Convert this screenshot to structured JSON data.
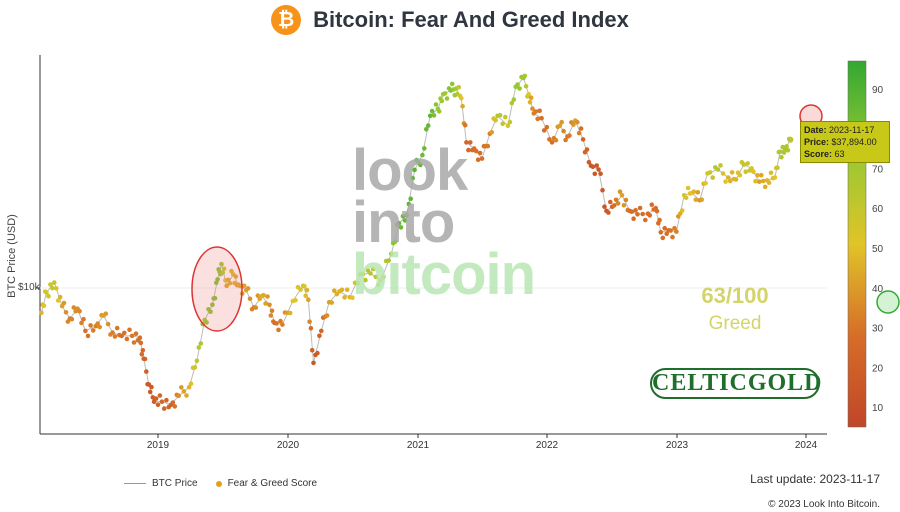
{
  "header": {
    "title": "Bitcoin: Fear And Greed Index",
    "logo_glyph": "₿"
  },
  "chart_data": {
    "type": "scatter",
    "title": "Bitcoin: Fear And Greed Index",
    "ylabel": "BTC Price (USD)",
    "y_scale": "log",
    "y_tick_label": "$10k",
    "x_ticks": [
      "2019",
      "2020",
      "2021",
      "2022",
      "2023",
      "2024"
    ],
    "colorbar_ticks": [
      10,
      20,
      30,
      40,
      50,
      60,
      70,
      80,
      90
    ],
    "series": [
      {
        "name": "BTC Price",
        "points": [
          [
            2018.1,
            8000
          ],
          [
            2018.14,
            9600
          ],
          [
            2018.2,
            10500
          ],
          [
            2018.26,
            8500
          ],
          [
            2018.32,
            7600
          ],
          [
            2018.38,
            8300
          ],
          [
            2018.44,
            6800
          ],
          [
            2018.52,
            7100
          ],
          [
            2018.58,
            7800
          ],
          [
            2018.65,
            6700
          ],
          [
            2018.72,
            6500
          ],
          [
            2018.8,
            6500
          ],
          [
            2018.86,
            6400
          ],
          [
            2018.89,
            5300
          ],
          [
            2018.93,
            4200
          ],
          [
            2018.97,
            3600
          ],
          [
            2019.03,
            3600
          ],
          [
            2019.1,
            3500
          ],
          [
            2019.16,
            3800
          ],
          [
            2019.24,
            4100
          ],
          [
            2019.3,
            5200
          ],
          [
            2019.36,
            7500
          ],
          [
            2019.42,
            8600
          ],
          [
            2019.46,
            10800
          ],
          [
            2019.49,
            12400
          ],
          [
            2019.53,
            10200
          ],
          [
            2019.58,
            11300
          ],
          [
            2019.62,
            10300
          ],
          [
            2019.68,
            9800
          ],
          [
            2019.74,
            8400
          ],
          [
            2019.8,
            9300
          ],
          [
            2019.86,
            8600
          ],
          [
            2019.9,
            7300
          ],
          [
            2019.96,
            7200
          ],
          [
            2020.04,
            8900
          ],
          [
            2020.12,
            10200
          ],
          [
            2020.16,
            9000
          ],
          [
            2020.2,
            5100
          ],
          [
            2020.26,
            6800
          ],
          [
            2020.32,
            8800
          ],
          [
            2020.4,
            9700
          ],
          [
            2020.48,
            9200
          ],
          [
            2020.56,
            11300
          ],
          [
            2020.64,
            11400
          ],
          [
            2020.72,
            10700
          ],
          [
            2020.8,
            13600
          ],
          [
            2020.86,
            17900
          ],
          [
            2020.92,
            19200
          ],
          [
            2020.98,
            28900
          ],
          [
            2021.04,
            33000
          ],
          [
            2021.1,
            47000
          ],
          [
            2021.16,
            50000
          ],
          [
            2021.2,
            57000
          ],
          [
            2021.26,
            59000
          ],
          [
            2021.3,
            60000
          ],
          [
            2021.34,
            55000
          ],
          [
            2021.38,
            37000
          ],
          [
            2021.44,
            35000
          ],
          [
            2021.5,
            32000
          ],
          [
            2021.56,
            40000
          ],
          [
            2021.62,
            47000
          ],
          [
            2021.7,
            43000
          ],
          [
            2021.76,
            61000
          ],
          [
            2021.82,
            66000
          ],
          [
            2021.86,
            57000
          ],
          [
            2021.9,
            48000
          ],
          [
            2021.96,
            46000
          ],
          [
            2022.04,
            37000
          ],
          [
            2022.1,
            43000
          ],
          [
            2022.16,
            39000
          ],
          [
            2022.22,
            45000
          ],
          [
            2022.28,
            38000
          ],
          [
            2022.34,
            30000
          ],
          [
            2022.4,
            29000
          ],
          [
            2022.46,
            20000
          ],
          [
            2022.52,
            21000
          ],
          [
            2022.58,
            23000
          ],
          [
            2022.64,
            20000
          ],
          [
            2022.7,
            19400
          ],
          [
            2022.78,
            19500
          ],
          [
            2022.84,
            20500
          ],
          [
            2022.88,
            16500
          ],
          [
            2022.94,
            16800
          ],
          [
            2023.0,
            16600
          ],
          [
            2023.06,
            23000
          ],
          [
            2023.12,
            23500
          ],
          [
            2023.18,
            22000
          ],
          [
            2023.24,
            28000
          ],
          [
            2023.32,
            29000
          ],
          [
            2023.4,
            27000
          ],
          [
            2023.46,
            26500
          ],
          [
            2023.52,
            30300
          ],
          [
            2023.58,
            29300
          ],
          [
            2023.64,
            26000
          ],
          [
            2023.7,
            26300
          ],
          [
            2023.76,
            27000
          ],
          [
            2023.8,
            34000
          ],
          [
            2023.84,
            35000
          ],
          [
            2023.88,
            37894
          ]
        ]
      },
      {
        "name": "Fear & Greed Score",
        "scores": [
          45,
          55,
          60,
          40,
          30,
          35,
          25,
          30,
          40,
          30,
          25,
          28,
          25,
          20,
          12,
          15,
          20,
          18,
          35,
          45,
          60,
          75,
          80,
          82,
          75,
          40,
          45,
          40,
          40,
          30,
          45,
          35,
          25,
          30,
          50,
          55,
          40,
          10,
          20,
          40,
          45,
          45,
          65,
          65,
          55,
          75,
          85,
          88,
          90,
          85,
          88,
          75,
          70,
          80,
          70,
          50,
          20,
          25,
          25,
          30,
          65,
          55,
          75,
          75,
          50,
          30,
          25,
          25,
          40,
          25,
          40,
          20,
          12,
          12,
          10,
          25,
          40,
          25,
          25,
          25,
          25,
          25,
          25,
          30,
          55,
          50,
          35,
          55,
          65,
          45,
          45,
          60,
          55,
          40,
          45,
          50,
          65,
          70,
          63
        ]
      }
    ],
    "tooltip": {
      "date_label": "Date:",
      "date": "2023-11-17",
      "price_label": "Price:",
      "price": "$37,894.00",
      "score_label": "Score:",
      "score": 63
    },
    "current_score": "63/100",
    "current_label": "Greed",
    "legend": [
      "BTC Price",
      "Fear & Greed Score"
    ],
    "colors": {
      "fear": "#c0502b",
      "neutral": "#e0c020",
      "greed": "#3aa83a"
    }
  },
  "watermark": {
    "line1": "look",
    "line2": "into",
    "line3": "bitcoin"
  },
  "sponsor": {
    "text": "CELTICGOLD"
  },
  "footer": {
    "last_update": "Last update: 2023-11-17",
    "copyright": "© 2023 Look Into Bitcoin."
  }
}
